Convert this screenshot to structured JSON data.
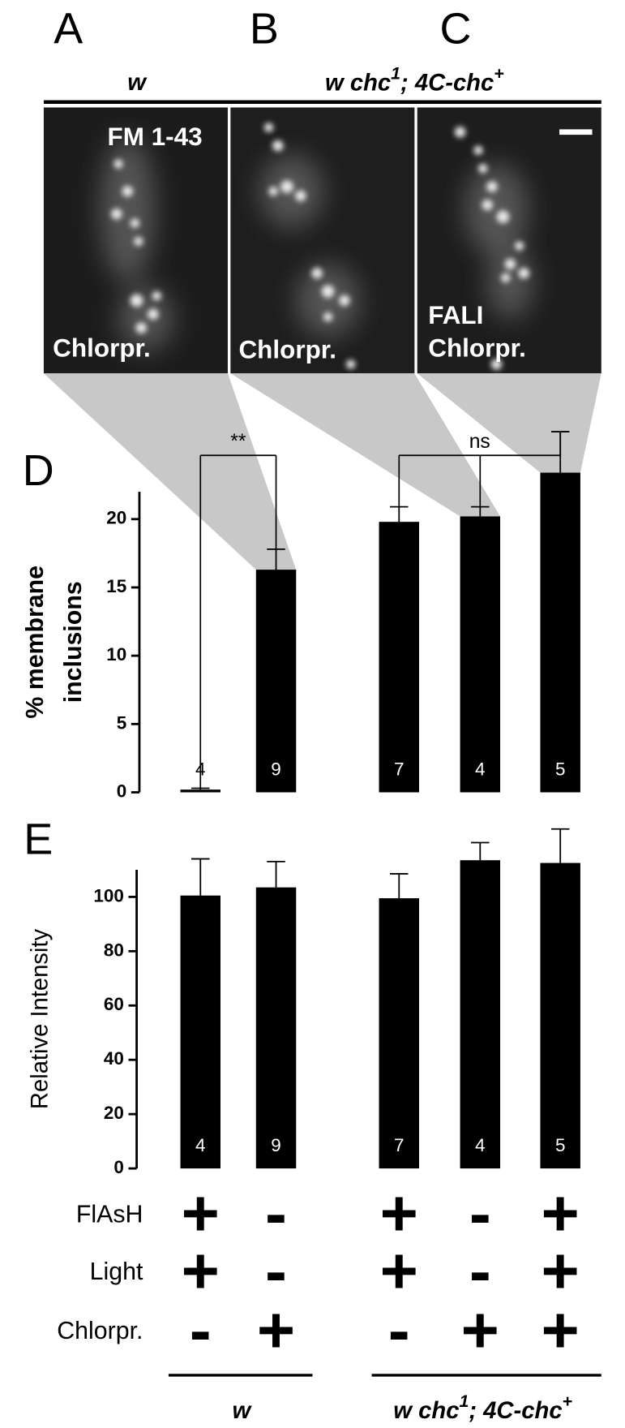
{
  "panel_labels": [
    "A",
    "B",
    "C",
    "D",
    "E"
  ],
  "header": {
    "group1": "w",
    "group2": [
      "w chc",
      "1",
      "; 4C-chc",
      "+"
    ]
  },
  "images": [
    {
      "labels": [
        "FM 1-43",
        "Chlorpr."
      ]
    },
    {
      "labels": [
        "Chlorpr."
      ]
    },
    {
      "labels": [
        "FALI",
        "Chlorpr."
      ]
    }
  ],
  "chart_data": [
    {
      "type": "bar",
      "ylabel": [
        "% membrane",
        "inclusions"
      ],
      "values": [
        0.2,
        16.3,
        19.8,
        20.2,
        23.4
      ],
      "errors": [
        0.1,
        1.5,
        1.1,
        0.7,
        3.0
      ],
      "n": [
        4,
        9,
        7,
        4,
        5
      ],
      "color": "#000000",
      "ylim": [
        0,
        22
      ],
      "yticks": [
        0,
        5,
        10,
        15,
        20
      ],
      "annotations": [
        {
          "from": 0,
          "to": 1,
          "text": "**"
        },
        {
          "from": 2,
          "to": 4,
          "text": "ns"
        }
      ]
    },
    {
      "type": "bar",
      "ylabel": [
        "Relative Intensity"
      ],
      "values": [
        100.5,
        103.5,
        99.5,
        113.5,
        112.5
      ],
      "errors": [
        13.5,
        9.5,
        9,
        6.5,
        12.5
      ],
      "n": [
        4,
        9,
        7,
        4,
        5
      ],
      "color": "#000000",
      "ylim": [
        0,
        110
      ],
      "yticks": [
        0,
        20,
        40,
        60,
        80,
        100
      ]
    }
  ],
  "conditions": {
    "rows": [
      {
        "label": "FlAsH",
        "marks": [
          "+",
          "-",
          "+",
          "-",
          "+"
        ]
      },
      {
        "label": "Light",
        "marks": [
          "+",
          "-",
          "+",
          "-",
          "+"
        ]
      },
      {
        "label": "Chlorpr.",
        "marks": [
          "-",
          "+",
          "-",
          "+",
          "+"
        ]
      }
    ]
  },
  "groups": [
    [
      "w"
    ],
    [
      "w chc",
      "1",
      "; 4C-chc",
      "+"
    ]
  ]
}
